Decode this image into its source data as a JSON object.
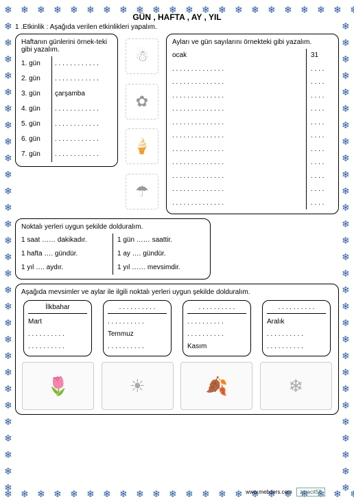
{
  "title": "GÜN , HAFTA , AY , YIL",
  "activity": "1 .Etkinlik : Aşağıda verilen etkinlikleri yapalım.",
  "daysBox": {
    "header": "Haftanın günlerini örnek-teki gibi yazalım.",
    "rows": [
      {
        "n": "1. gün",
        "v": ". . . . . . . . . . . ."
      },
      {
        "n": "2. gün",
        "v": ". . . . . . . . . . . ."
      },
      {
        "n": "3. gün",
        "v": "çarşamba"
      },
      {
        "n": "4. gün",
        "v": ". . . . . . . . . . . ."
      },
      {
        "n": "5. gün",
        "v": ". . . . . . . . . . . ."
      },
      {
        "n": "6. gün",
        "v": ". . . . . . . . . . . ."
      },
      {
        "n": "7. gün",
        "v": ". . . . . . . . . . . ."
      }
    ]
  },
  "monthsBox": {
    "header": "Ayları ve gün sayılarını örnekteki gibi yazalım.",
    "rows": [
      {
        "m": "ocak",
        "d": "31"
      },
      {
        "m": ". . . . . . . . . . . . . .",
        "d": ". . . ."
      },
      {
        "m": ". . . . . . . . . . . . . .",
        "d": ". . . ."
      },
      {
        "m": ". . . . . . . . . . . . . .",
        "d": ". . . ."
      },
      {
        "m": ". . . . . . . . . . . . . .",
        "d": ". . . ."
      },
      {
        "m": ". . . . . . . . . . . . . .",
        "d": ". . . ."
      },
      {
        "m": ". . . . . . . . . . . . . .",
        "d": ". . . ."
      },
      {
        "m": ". . . . . . . . . . . . . .",
        "d": ". . . ."
      },
      {
        "m": ". . . . . . . . . . . . . .",
        "d": ". . . ."
      },
      {
        "m": ". . . . . . . . . . . . . .",
        "d": ". . . ."
      },
      {
        "m": ". . . . . . . . . . . . . .",
        "d": ". . . ."
      },
      {
        "m": ". . . . . . . . . . . . . .",
        "d": ". . . ."
      }
    ]
  },
  "fillBox": {
    "header": "Noktalı yerleri  uygun şekilde dolduralım.",
    "left": [
      "1 saat  ……  dakikadır.",
      "1  hafta  ….  gündür.",
      "1  yıl  ….  aydır."
    ],
    "right": [
      "1 gün  ……  saattir.",
      "1  ay  ….  gündür.",
      "1  yıl  …… mevsimdir."
    ]
  },
  "seasonsBox": {
    "header": "Aşağıda mevsimler ve aylar ile ilgili noktalı yerleri  uygun şekilde dolduralım.",
    "cards": [
      {
        "title": "İlkbahar",
        "items": [
          "Mart",
          ". . . . . . . . . .",
          ". . . . . . . . . ."
        ]
      },
      {
        "title": ". . . . . . . . . .",
        "items": [
          ". . . . . . . . . .",
          "Temmuz",
          ". . . . . . . . . ."
        ]
      },
      {
        "title": ". . . . . . . . . .",
        "items": [
          ". . . . . . . . . .",
          ". . . . . . . . . .",
          "Kasım"
        ]
      },
      {
        "title": ". . . . . . . . . .",
        "items": [
          "Aralık",
          ". . . . . . . . . .",
          ". . . . . . . . . ."
        ]
      }
    ]
  },
  "clipart": [
    "☃",
    "✿",
    "🍦",
    "☂"
  ],
  "seasonImages": [
    "🌷",
    "☀",
    "🍂",
    "❄"
  ],
  "footer": {
    "site": "www.mebders.com",
    "tag": "zmacit58"
  },
  "border": {
    "color": "#2c5aa0",
    "glyph": "❄"
  }
}
